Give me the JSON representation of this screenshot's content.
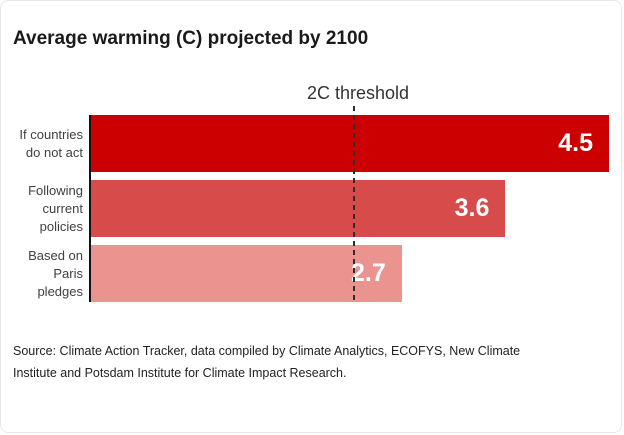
{
  "header": {
    "title": "Average warming (C) projected by 2100"
  },
  "chart_data": {
    "type": "bar",
    "orientation": "horizontal",
    "title": "Average warming (C) projected by 2100",
    "categories": [
      "If countries\ndo not act",
      "Following\ncurrent\npolicies",
      "Based on\nParis\npledges"
    ],
    "values": [
      4.5,
      3.6,
      2.7
    ],
    "value_labels": [
      "4.5",
      "3.6",
      "2.7"
    ],
    "bar_colors": [
      "#cc0000",
      "#d74b4b",
      "#ea938f"
    ],
    "xlim": [
      0,
      4.5
    ],
    "grid": false,
    "legend": false,
    "threshold": {
      "label": "2C threshold",
      "value": 2
    }
  },
  "footer": {
    "source": "Source: Climate Action Tracker, data compiled by Climate Analytics, ECOFYS, New Climate\nInstitute and Potsdam Institute for Climate Impact Research."
  },
  "colors": {
    "bar_dark": "#cc0000",
    "bar_medium": "#d74b4b",
    "bar_light": "#ea938f",
    "axis": "#111111",
    "threshold_line": "#2e2e2e",
    "value_text": "#ffffff"
  }
}
